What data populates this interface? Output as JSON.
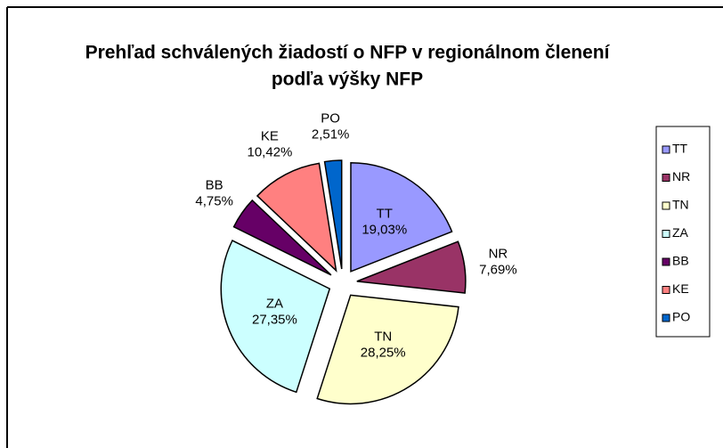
{
  "chart_data": {
    "type": "pie",
    "title": [
      "Prehľad schválených žiadostí o NFP v regionálnom členení",
      "podľa výšky NFP"
    ],
    "categories": [
      "TT",
      "NR",
      "TN",
      "ZA",
      "BB",
      "KE",
      "PO"
    ],
    "values": [
      19.03,
      7.69,
      28.25,
      27.35,
      4.75,
      10.42,
      2.51
    ],
    "value_labels": [
      "19,03%",
      "7,69%",
      "28,25%",
      "27,35%",
      "4,75%",
      "10,42%",
      "2,51%"
    ],
    "colors": [
      "#9999ff",
      "#993366",
      "#ffffcc",
      "#ccffff",
      "#660066",
      "#ff8080",
      "#0066cc"
    ],
    "legend": "right"
  }
}
